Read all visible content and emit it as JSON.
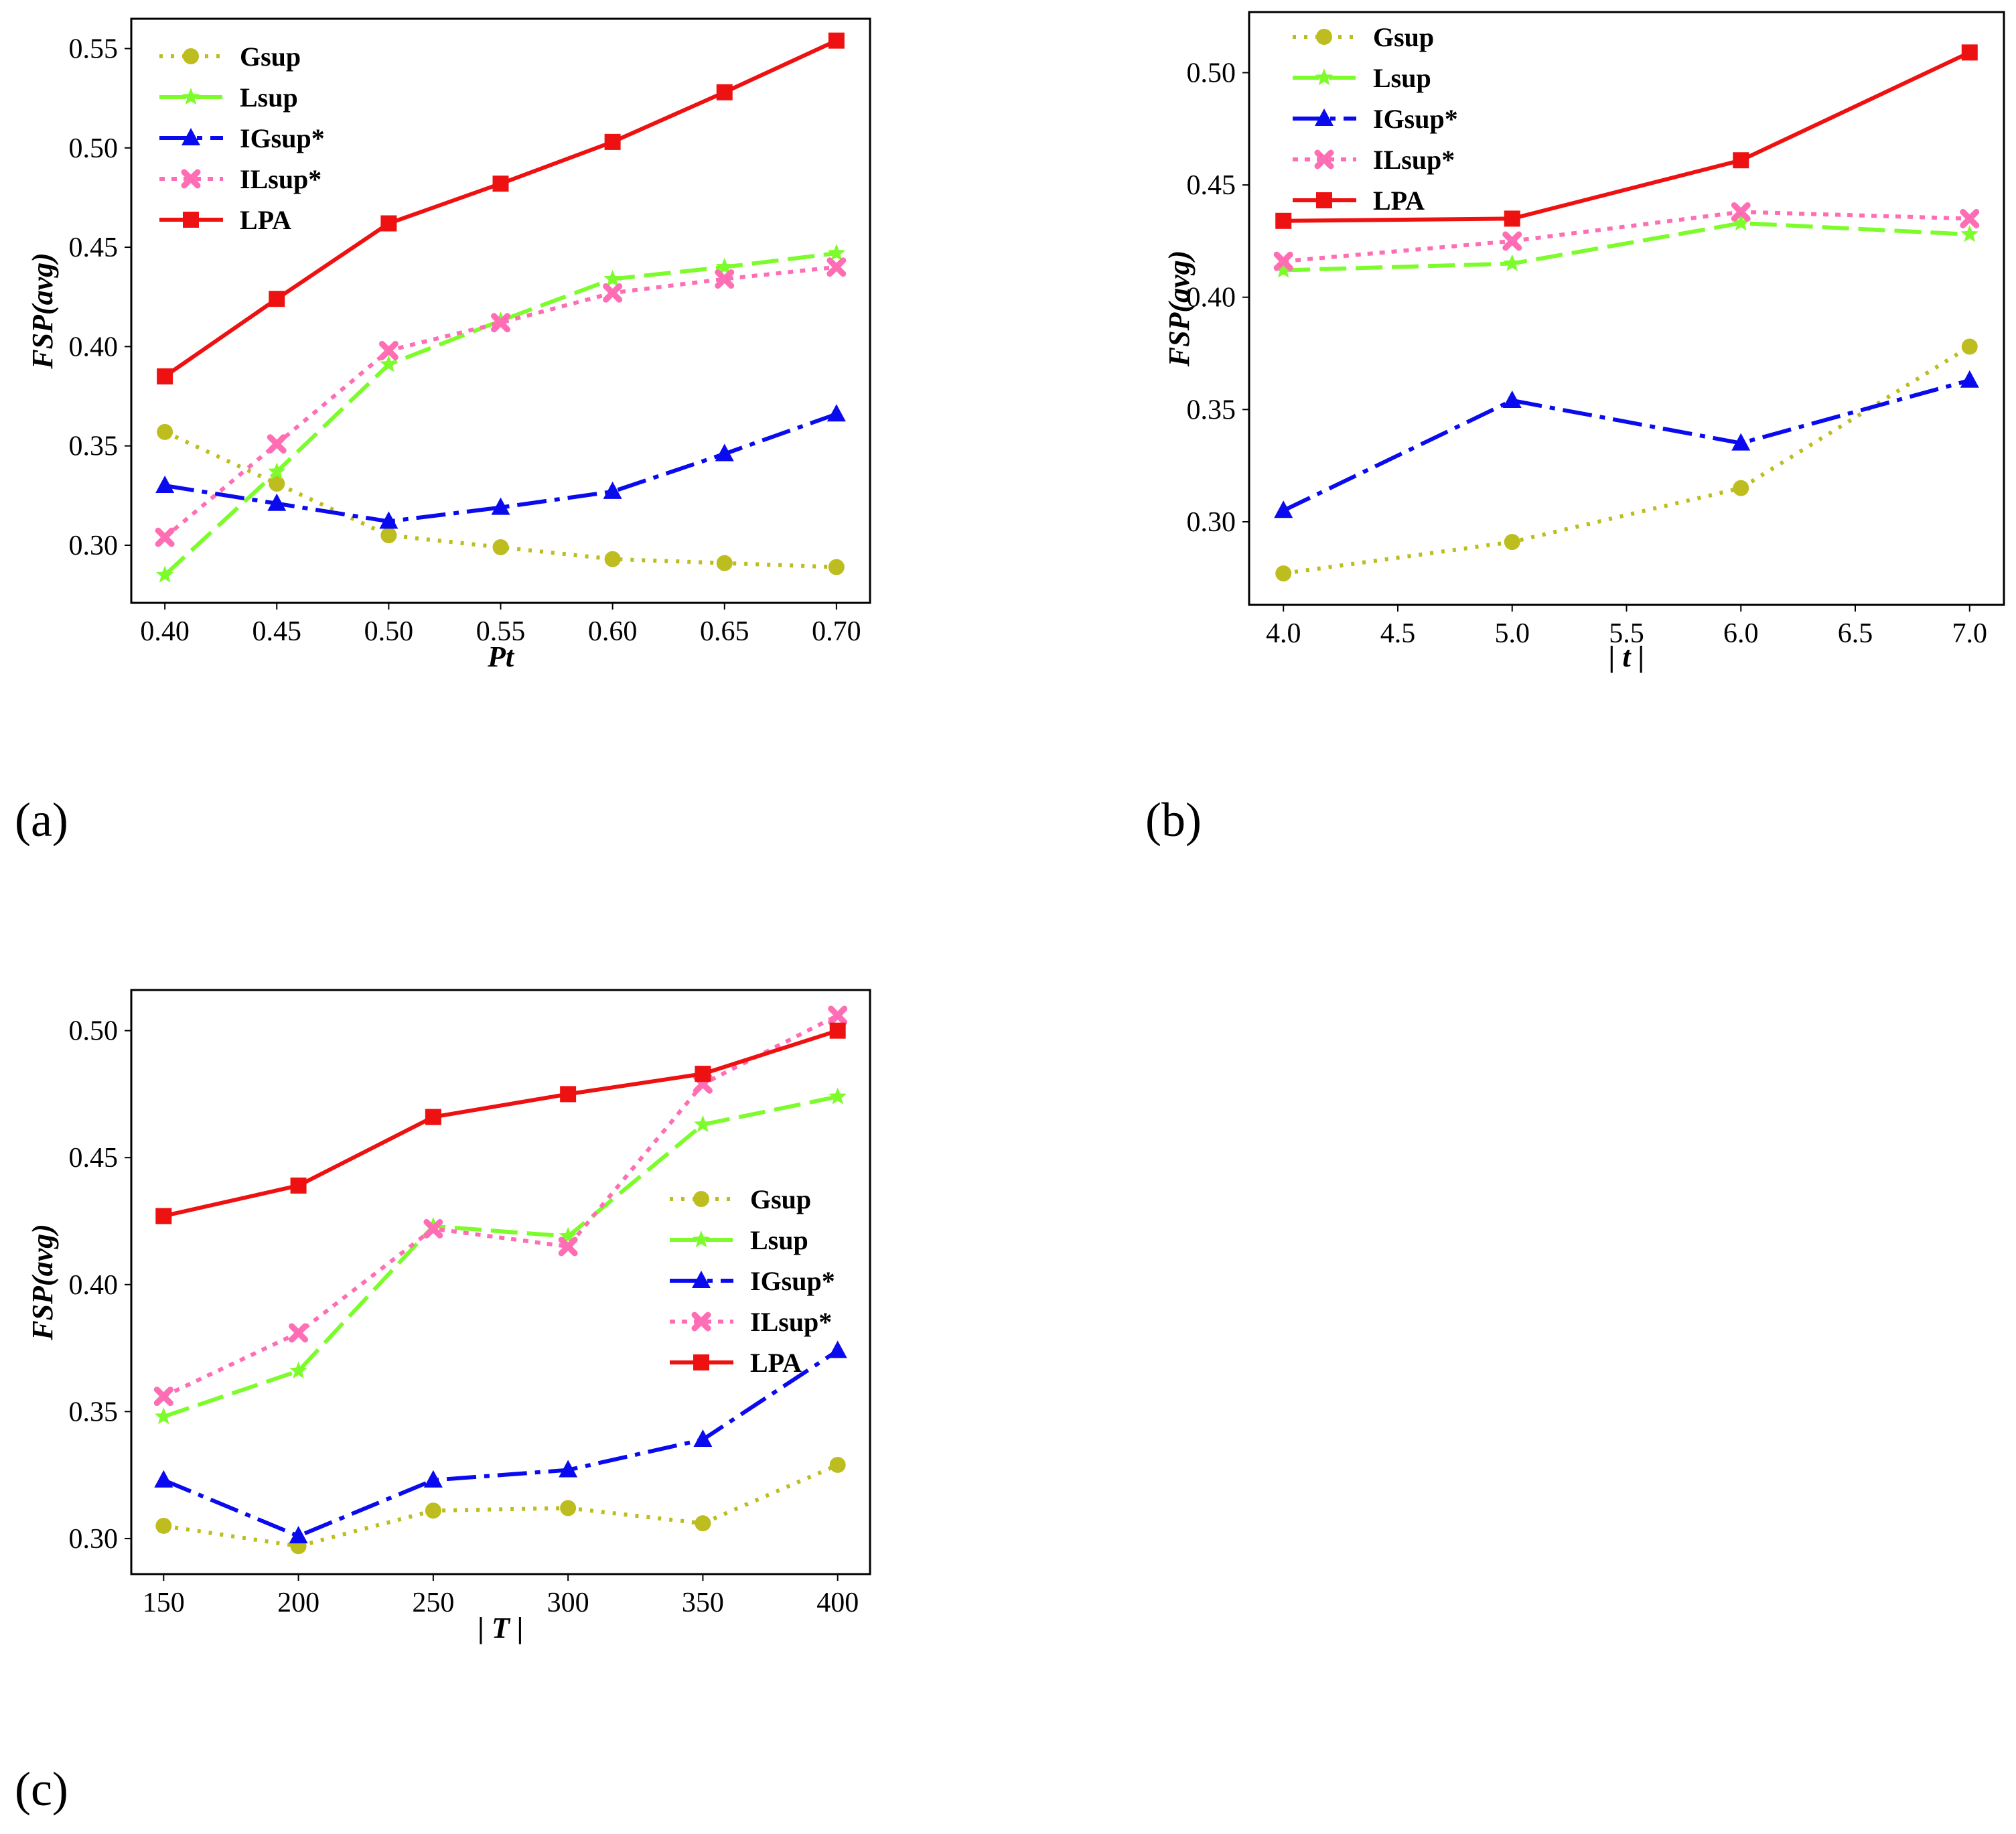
{
  "colors": {
    "Gsup": "#bdbd1f",
    "Lsup": "#7cfc2a",
    "IGsup*": "#0a0aee",
    "ILsup*": "#ff6eb4",
    "LPA": "#ee1111",
    "axis": "#000000"
  },
  "chart_data": [
    {
      "type": "line",
      "panel": "(a)",
      "xlabel": "Pt",
      "ylabel": "FSP(avg)",
      "x": [
        0.4,
        0.45,
        0.5,
        0.55,
        0.6,
        0.65,
        0.7
      ],
      "xlim": [
        0.385,
        0.715
      ],
      "ylim": [
        0.271,
        0.565
      ],
      "xticks": [
        "0.40",
        "0.45",
        "0.50",
        "0.55",
        "0.60",
        "0.65",
        "0.70"
      ],
      "yticks": [
        "0.30",
        "0.35",
        "0.40",
        "0.45",
        "0.50",
        "0.55"
      ],
      "legend": "upper-left",
      "series": [
        {
          "name": "Gsup",
          "values": [
            0.357,
            0.331,
            0.305,
            0.299,
            0.293,
            0.291,
            0.289
          ]
        },
        {
          "name": "Lsup",
          "values": [
            0.285,
            0.337,
            0.391,
            0.413,
            0.434,
            0.44,
            0.447
          ]
        },
        {
          "name": "IGsup*",
          "values": [
            0.33,
            0.321,
            0.312,
            0.319,
            0.327,
            0.346,
            0.366
          ]
        },
        {
          "name": "ILsup*",
          "values": [
            0.304,
            0.351,
            0.398,
            0.412,
            0.427,
            0.434,
            0.44
          ]
        },
        {
          "name": "LPA",
          "values": [
            0.385,
            0.424,
            0.462,
            0.482,
            0.503,
            0.528,
            0.554
          ]
        }
      ]
    },
    {
      "type": "line",
      "panel": "(b)",
      "xlabel": "| t |",
      "ylabel": "FSP(avg)",
      "x": [
        4.0,
        5.0,
        6.0,
        7.0
      ],
      "xlim": [
        3.85,
        7.15
      ],
      "ylim": [
        0.263,
        0.527
      ],
      "xticks": [
        "4.0",
        "4.5",
        "5.0",
        "5.5",
        "6.0",
        "6.5",
        "7.0"
      ],
      "yticks": [
        "0.30",
        "0.35",
        "0.40",
        "0.45",
        "0.50"
      ],
      "legend": "upper-left",
      "series": [
        {
          "name": "Gsup",
          "values": [
            0.277,
            0.291,
            0.315,
            0.378
          ]
        },
        {
          "name": "Lsup",
          "values": [
            0.412,
            0.415,
            0.433,
            0.428
          ]
        },
        {
          "name": "IGsup*",
          "values": [
            0.305,
            0.354,
            0.335,
            0.363
          ]
        },
        {
          "name": "ILsup*",
          "values": [
            0.416,
            0.425,
            0.438,
            0.435
          ]
        },
        {
          "name": "LPA",
          "values": [
            0.434,
            0.435,
            0.461,
            0.509
          ]
        }
      ]
    },
    {
      "type": "line",
      "panel": "(c)",
      "xlabel": "| T |",
      "ylabel": "FSP(avg)",
      "x": [
        150,
        200,
        250,
        300,
        350,
        400
      ],
      "xlim": [
        138,
        412
      ],
      "ylim": [
        0.286,
        0.516
      ],
      "xticks": [
        "150",
        "200",
        "250",
        "300",
        "350",
        "400"
      ],
      "yticks": [
        "0.30",
        "0.35",
        "0.40",
        "0.45",
        "0.50"
      ],
      "legend": "center-right",
      "series": [
        {
          "name": "Gsup",
          "values": [
            0.305,
            0.297,
            0.311,
            0.312,
            0.306,
            0.329
          ]
        },
        {
          "name": "Lsup",
          "values": [
            0.348,
            0.366,
            0.423,
            0.419,
            0.463,
            0.474
          ]
        },
        {
          "name": "IGsup*",
          "values": [
            0.323,
            0.301,
            0.323,
            0.327,
            0.339,
            0.374
          ]
        },
        {
          "name": "ILsup*",
          "values": [
            0.356,
            0.381,
            0.422,
            0.415,
            0.479,
            0.506
          ]
        },
        {
          "name": "LPA",
          "values": [
            0.427,
            0.439,
            0.466,
            0.475,
            0.483,
            0.5
          ]
        }
      ]
    }
  ]
}
